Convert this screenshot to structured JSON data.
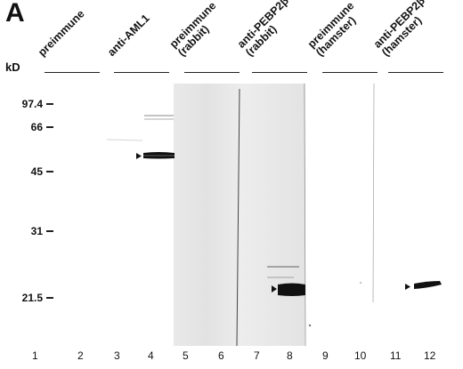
{
  "panel_label": "A",
  "kd_label": "kD",
  "markers": [
    {
      "label": "97.4",
      "kd": 97.4
    },
    {
      "label": "66",
      "kd": 66
    },
    {
      "label": "45",
      "kd": 45
    },
    {
      "label": "31",
      "kd": 31
    },
    {
      "label": "21.5",
      "kd": 21.5
    }
  ],
  "antibody_headers": [
    {
      "text_line1": "preimmune",
      "text_line2": ""
    },
    {
      "text_line1": "anti-AML1",
      "text_line2": ""
    },
    {
      "text_line1": "preimmune",
      "text_line2": "(rabbit)"
    },
    {
      "text_line1": "anti-PEBP2β",
      "text_line2": "(rabbit)"
    },
    {
      "text_line1": "preimmune",
      "text_line2": "(hamster)"
    },
    {
      "text_line1": "anti-PEBP2β",
      "text_line2": "(hamster)"
    }
  ],
  "lane_numbers": [
    "1",
    "2",
    "3",
    "4",
    "5",
    "6",
    "7",
    "8",
    "9",
    "10",
    "11",
    "12"
  ],
  "colors": {
    "band": "#111111",
    "background": "#ffffff",
    "grey_panel": "#e6e6e6"
  }
}
